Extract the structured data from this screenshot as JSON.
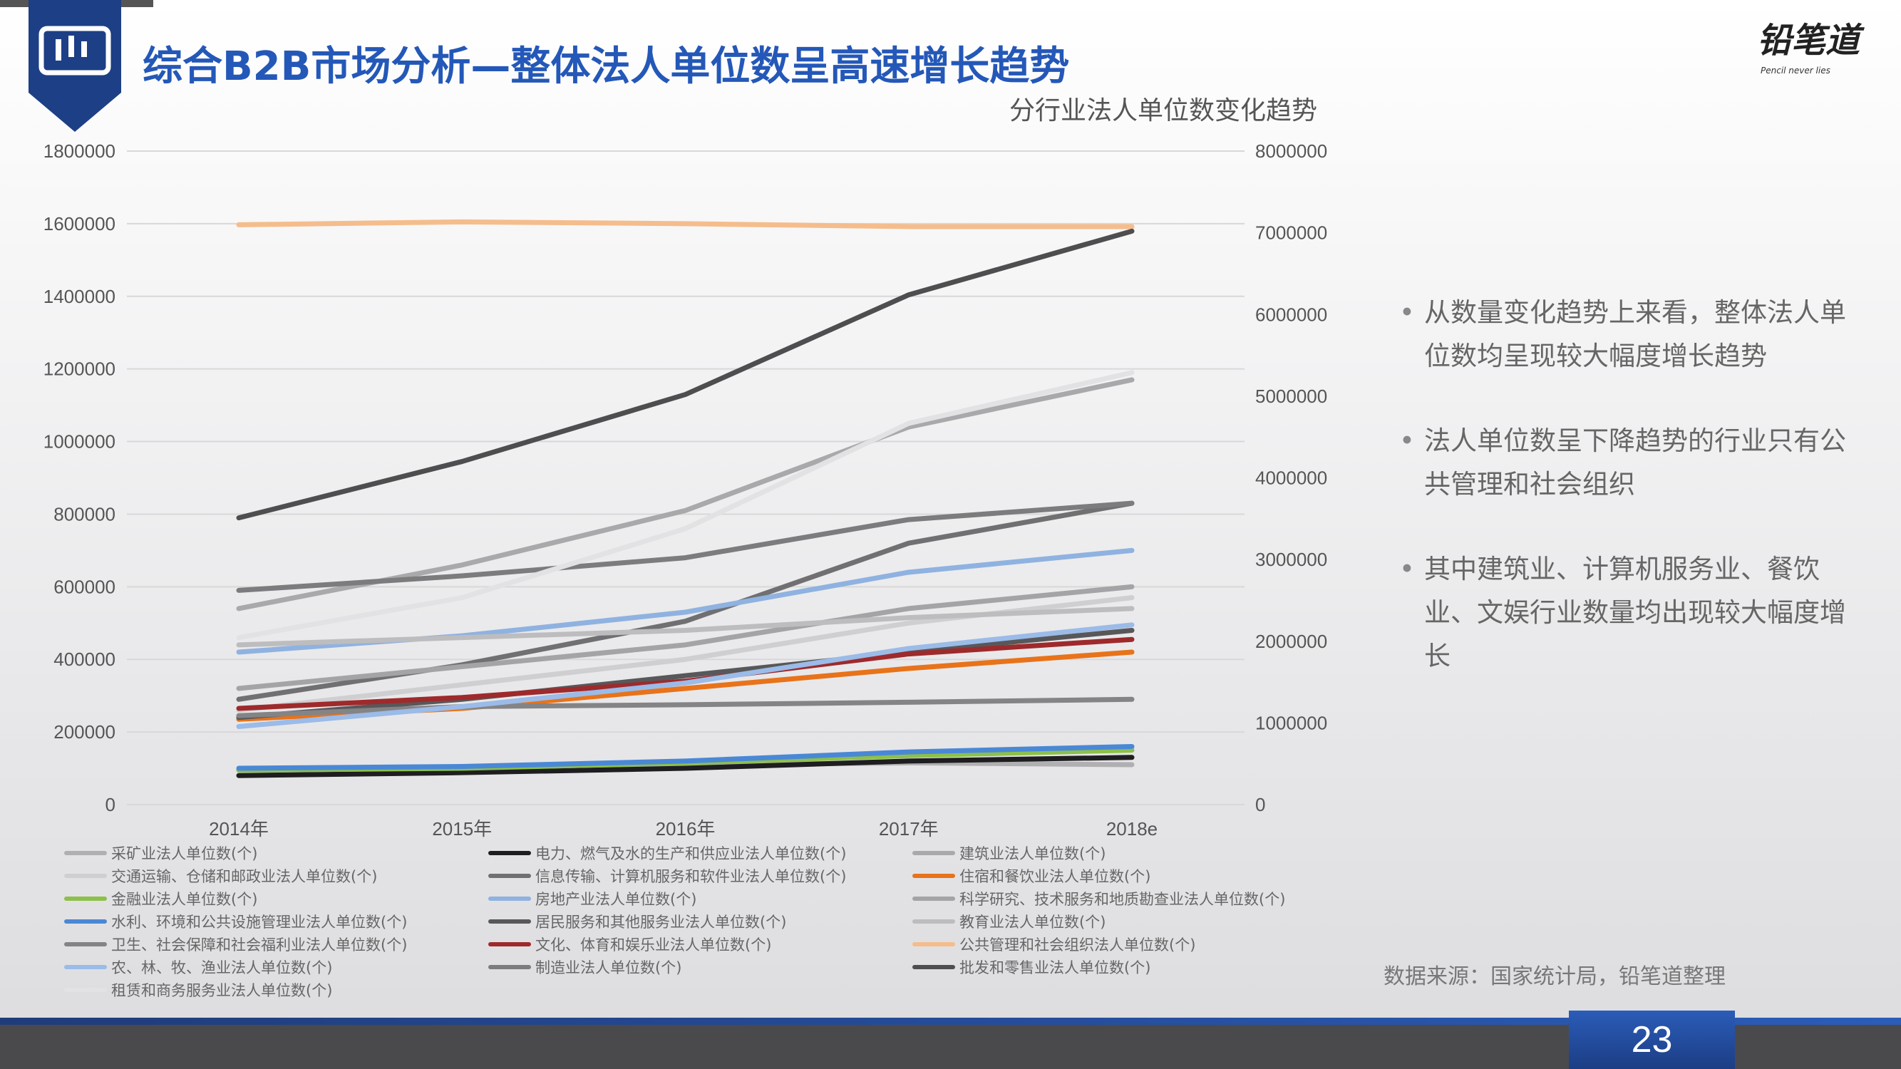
{
  "header": {
    "title": "综合B2B市场分析—整体法人单位数呈高速增长趋势",
    "brand": "铅笔道",
    "brand_tagline": "Pencil never lies"
  },
  "bullets": [
    "从数量变化趋势上来看，整体法人单位数均呈现较大幅度增长趋势",
    "法人单位数呈下降趋势的行业只有公共管理和社会组织",
    "其中建筑业、计算机服务业、餐饮业、文娱行业数量均出现较大幅度增长"
  ],
  "source": "数据来源：国家统计局，铅笔道整理",
  "page_number": "23",
  "chart_data": {
    "type": "line",
    "title": "分行业法人单位数变化趋势",
    "categories": [
      "2014年",
      "2015年",
      "2016年",
      "2017年",
      "2018e"
    ],
    "ylim": [
      0,
      1800000
    ],
    "y_ticks": [
      "0",
      "200000",
      "400000",
      "600000",
      "800000",
      "1000000",
      "1200000",
      "1400000",
      "1600000",
      "1800000"
    ],
    "y2lim": [
      0,
      8000000
    ],
    "y2_ticks": [
      "0",
      "1000000",
      "2000000",
      "3000000",
      "4000000",
      "5000000",
      "6000000",
      "7000000",
      "8000000"
    ],
    "grid": true,
    "legend": "bottom",
    "series": [
      {
        "name": "采矿业法人单位数(个)",
        "color": "#b0b0b2",
        "axis": "left",
        "values": [
          95000,
          100000,
          110000,
          115000,
          110000
        ]
      },
      {
        "name": "电力、燃气及水的生产和供应业法人单位数(个)",
        "color": "#1e1e20",
        "axis": "left",
        "values": [
          80000,
          88000,
          100000,
          120000,
          130000
        ]
      },
      {
        "name": "建筑业法人单位数(个)",
        "color": "#a9a9ab",
        "axis": "left",
        "values": [
          540000,
          660000,
          810000,
          1040000,
          1170000
        ]
      },
      {
        "name": "交通运输、仓储和邮政业法人单位数(个)",
        "color": "#cfcfd1",
        "axis": "left",
        "values": [
          260000,
          330000,
          400000,
          500000,
          570000
        ]
      },
      {
        "name": "信息传输、计算机服务和软件业法人单位数(个)",
        "color": "#707072",
        "axis": "left",
        "values": [
          290000,
          385000,
          505000,
          720000,
          830000
        ]
      },
      {
        "name": "住宿和餐饮业法人单位数(个)",
        "color": "#e8731a",
        "axis": "left",
        "values": [
          235000,
          265000,
          320000,
          375000,
          420000
        ]
      },
      {
        "name": "金融业法人单位数(个)",
        "color": "#8dc04a",
        "axis": "left",
        "values": [
          95000,
          100000,
          115000,
          135000,
          150000
        ]
      },
      {
        "name": "房地产业法人单位数(个)",
        "color": "#8fb2e0",
        "axis": "left",
        "values": [
          420000,
          465000,
          530000,
          640000,
          700000
        ]
      },
      {
        "name": "科学研究、技术服务和地质勘查业法人单位数(个)",
        "color": "#a4a4a6",
        "axis": "left",
        "values": [
          320000,
          380000,
          440000,
          540000,
          600000
        ]
      },
      {
        "name": "水利、环境和公共设施管理业法人单位数(个)",
        "color": "#4a88d6",
        "axis": "left",
        "values": [
          100000,
          105000,
          120000,
          145000,
          160000
        ]
      },
      {
        "name": "居民服务和其他服务业法人单位数(个)",
        "color": "#58585a",
        "axis": "left",
        "values": [
          240000,
          290000,
          355000,
          420000,
          480000
        ]
      },
      {
        "name": "教育业法人单位数(个)",
        "color": "#bdbdbf",
        "axis": "left",
        "values": [
          440000,
          460000,
          480000,
          515000,
          540000
        ]
      },
      {
        "name": "卫生、社会保障和社会福利业法人单位数(个)",
        "color": "#848486",
        "axis": "left",
        "values": [
          245000,
          270000,
          275000,
          282000,
          290000
        ]
      },
      {
        "name": "文化、体育和娱乐业法人单位数(个)",
        "color": "#9e2a2c",
        "axis": "left",
        "values": [
          265000,
          295000,
          340000,
          415000,
          455000
        ]
      },
      {
        "name": "公共管理和社会组织法人单位数(个)",
        "color": "#f5bd8c",
        "axis": "left",
        "values": [
          1597000,
          1605000,
          1600000,
          1592000,
          1592000
        ]
      },
      {
        "name": "农、林、牧、渔业法人单位数(个)",
        "color": "#9bbbe8",
        "axis": "left",
        "values": [
          215000,
          270000,
          335000,
          430000,
          495000
        ]
      },
      {
        "name": "制造业法人单位数(个)",
        "color": "#7c7c7e",
        "axis": "left",
        "values": [
          590000,
          630000,
          680000,
          785000,
          830000
        ]
      },
      {
        "name": "批发和零售业法人单位数(个)",
        "color": "#4e4e50",
        "axis": "right",
        "values": [
          3510000,
          4200000,
          5020000,
          6240000,
          7020000
        ]
      },
      {
        "name": "租赁和商务服务业法人单位数(个)",
        "color": "#e2e2e4",
        "axis": "left",
        "values": [
          460000,
          570000,
          760000,
          1050000,
          1190000
        ]
      }
    ]
  }
}
